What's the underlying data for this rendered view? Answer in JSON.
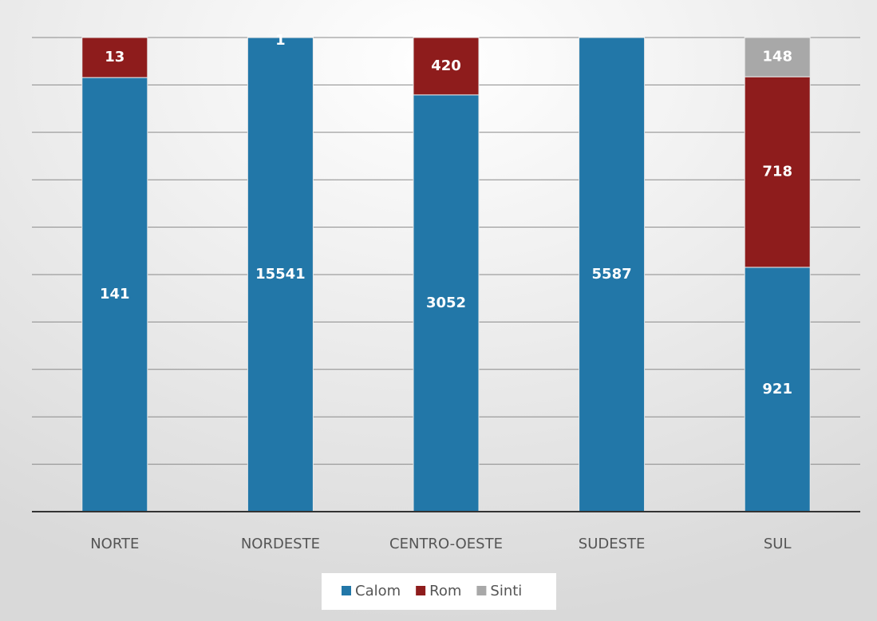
{
  "chart_data": {
    "type": "bar",
    "stacking": "percent",
    "categories": [
      "NORTE",
      "NORDESTE",
      "CENTRO-OESTE",
      "SUDESTE",
      "SUL"
    ],
    "series": [
      {
        "name": "Calom",
        "color": "#2277a8",
        "values": [
          141,
          15541,
          3052,
          5587,
          921
        ]
      },
      {
        "name": "Rom",
        "color": "#8e1c1c",
        "values": [
          13,
          1,
          420,
          null,
          718
        ]
      },
      {
        "name": "Sinti",
        "color": "#a8a8a8",
        "values": [
          null,
          null,
          null,
          null,
          148
        ]
      }
    ],
    "ylim": [
      0,
      100
    ],
    "yticks": [
      0,
      10,
      20,
      30,
      40,
      50,
      60,
      70,
      80,
      90,
      100
    ],
    "grid": true,
    "legend": "bottom"
  }
}
